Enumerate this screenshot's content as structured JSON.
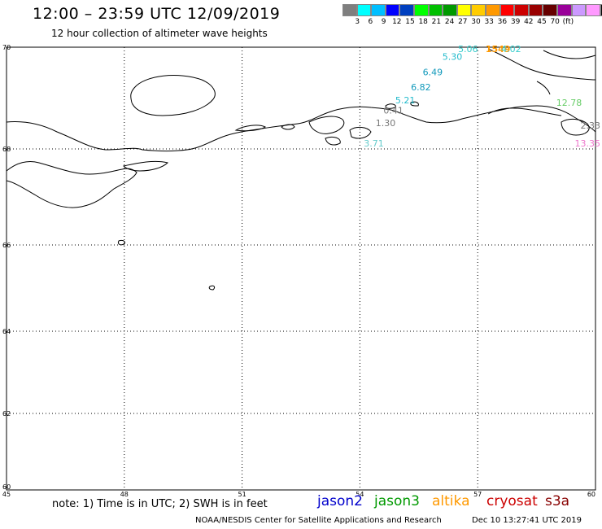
{
  "header": {
    "title": "12:00 – 23:59 UTC 12/09/2019",
    "subtitle": "12 hour collection of altimeter wave heights"
  },
  "colorbar": {
    "colors": [
      "#7f7f7f",
      "#00ffff",
      "#00bfff",
      "#0000ff",
      "#003fbf",
      "#00ff00",
      "#00bf00",
      "#009900",
      "#ffff00",
      "#ffcc00",
      "#ff9900",
      "#ff0000",
      "#cc0000",
      "#990000",
      "#660000",
      "#990099",
      "#cc99ff",
      "#ff99ff",
      "#000000"
    ],
    "labels": [
      "3",
      "6",
      "9",
      "12",
      "15",
      "18",
      "21",
      "24",
      "27",
      "30",
      "33",
      "36",
      "39",
      "42",
      "45",
      "70",
      "(ft)"
    ]
  },
  "axes": {
    "lon_labels": [
      "45",
      "48",
      "51",
      "54",
      "57",
      "60"
    ],
    "lat_labels": [
      "70",
      "68",
      "66",
      "64",
      "62",
      "60"
    ]
  },
  "observations": [
    {
      "value": "5.06",
      "color": "#33cccc",
      "lon": 56.5,
      "lat": 70.05
    },
    {
      "value": "1549",
      "color": "#ff9900",
      "lon": 57.2,
      "lat": 70.05
    },
    {
      "value": "4.02",
      "color": "#33cccc",
      "lon": 57.6,
      "lat": 69.95
    },
    {
      "value": "5.30",
      "color": "#22bbcc",
      "lon": 56.1,
      "lat": 69.75
    },
    {
      "value": "6.49",
      "color": "#1199bb",
      "lon": 55.6,
      "lat": 69.45
    },
    {
      "value": "6.82",
      "color": "#1199bb",
      "lon": 55.3,
      "lat": 69.15
    },
    {
      "value": "5.21",
      "color": "#22bbcc",
      "lon": 54.9,
      "lat": 68.9
    },
    {
      "value": "0.41",
      "color": "#777777",
      "lon": 54.6,
      "lat": 68.7
    },
    {
      "value": "1.30",
      "color": "#777777",
      "lon": 54.4,
      "lat": 68.45
    },
    {
      "value": "3.71",
      "color": "#66cccc",
      "lon": 54.1,
      "lat": 68.05
    },
    {
      "value": "12.78",
      "color": "#66cc66",
      "lon": 59.0,
      "lat": 68.85
    },
    {
      "value": "2.33",
      "color": "#777777",
      "lon": 59.6,
      "lat": 68.4
    },
    {
      "value": "13.35",
      "color": "#ee77cc",
      "lon": 60.1,
      "lat": 68.05
    }
  ],
  "footer": {
    "note": "note: 1) Time is in UTC; 2) SWH is in feet",
    "satellites": [
      {
        "name": "jason2",
        "color": "#0000cc"
      },
      {
        "name": "jason3",
        "color": "#009900"
      },
      {
        "name": "altika",
        "color": "#ff9900"
      },
      {
        "name": "cryosat",
        "color": "#cc0000"
      },
      {
        "name": "s3a",
        "color": "#880000"
      }
    ],
    "credit": "NOAA/NESDIS Center for Satellite Applications and Research",
    "timestamp": "Dec 10 13:27:41 UTC 2019"
  }
}
